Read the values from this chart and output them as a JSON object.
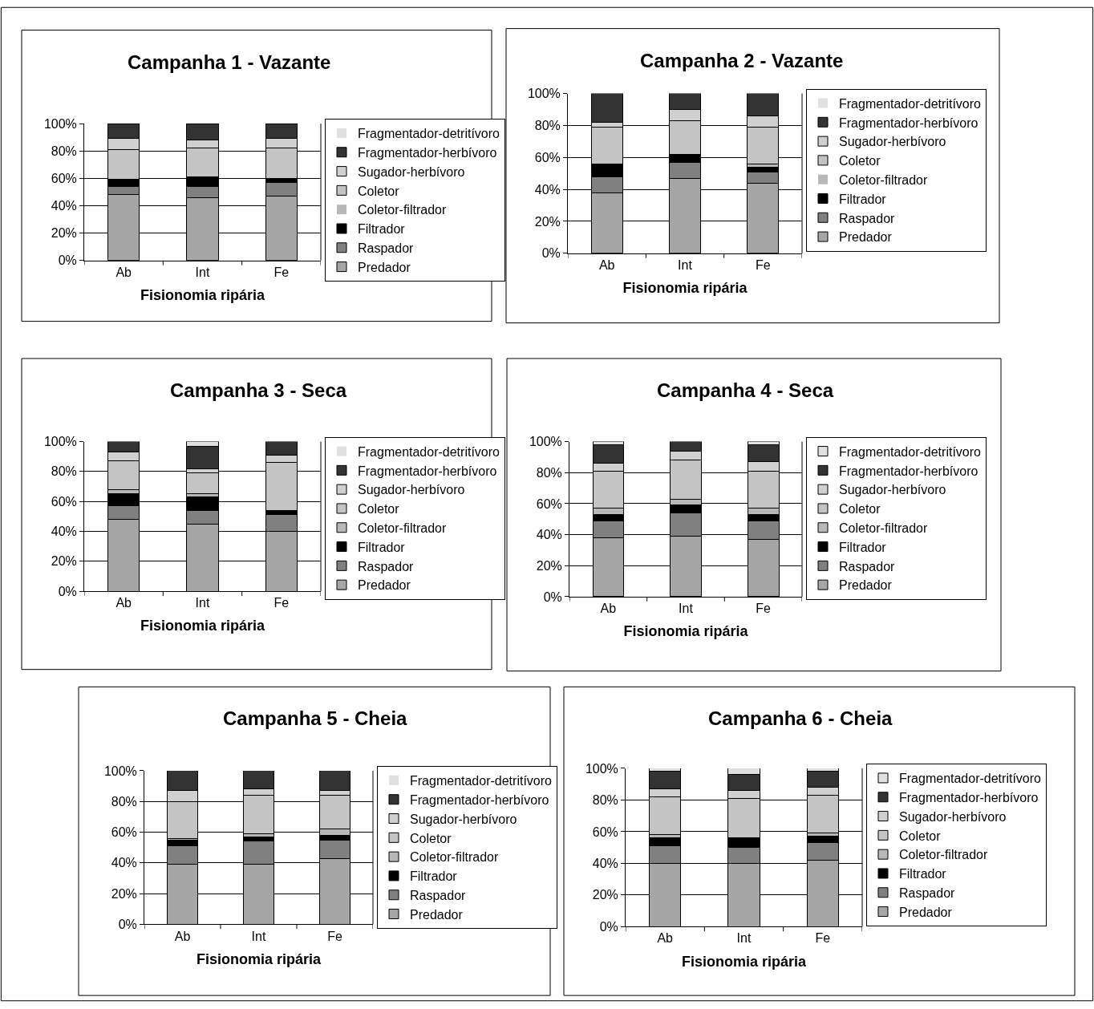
{
  "chart_data": [
    {
      "type": "bar",
      "stacked": true,
      "title": "Campanha 1 - Vazante",
      "xlabel": "Fisionomia ripária",
      "categories": [
        "Ab",
        "Int",
        "Fe"
      ],
      "ylim": [
        0,
        100
      ],
      "yticks": [
        {
          "value": 0,
          "label": "0%"
        },
        {
          "value": 20,
          "label": "20%"
        },
        {
          "value": 40,
          "label": "40%"
        },
        {
          "value": 60,
          "label": "60%"
        },
        {
          "value": 80,
          "label": "80%"
        },
        {
          "value": 100,
          "label": "100%"
        }
      ],
      "grid": "y",
      "legend": "right",
      "series": [
        {
          "name": "Predador",
          "color": "#a6a6a6",
          "values": [
            48,
            46,
            47
          ]
        },
        {
          "name": "Raspador",
          "color": "#808080",
          "values": [
            6,
            8,
            10
          ]
        },
        {
          "name": "Filtrador",
          "color": "#000000",
          "values": [
            5,
            7,
            3
          ]
        },
        {
          "name": "Coletor-filtrador",
          "color": "#b8b8b8",
          "values": [
            0,
            0,
            0
          ]
        },
        {
          "name": "Coletor",
          "color": "#c4c4c4",
          "values": [
            22,
            21,
            22
          ]
        },
        {
          "name": "Sugador-herbívoro",
          "color": "#d0d0d0",
          "values": [
            8,
            6,
            7
          ]
        },
        {
          "name": "Fragmentador-herbívoro",
          "color": "#333333",
          "values": [
            11,
            12,
            11
          ]
        },
        {
          "name": "Fragmentador-detritívoro",
          "color": "#e0e0e0",
          "values": [
            0,
            0,
            0
          ]
        }
      ]
    },
    {
      "type": "bar",
      "stacked": true,
      "title": "Campanha 2 - Vazante",
      "xlabel": "Fisionomia ripária",
      "categories": [
        "Ab",
        "Int",
        "Fe"
      ],
      "ylim": [
        0,
        100
      ],
      "yticks": [
        {
          "value": 0,
          "label": "0%"
        },
        {
          "value": 20,
          "label": "20%"
        },
        {
          "value": 40,
          "label": "40%"
        },
        {
          "value": 60,
          "label": "60%"
        },
        {
          "value": 80,
          "label": "80%"
        },
        {
          "value": 100,
          "label": "100%"
        }
      ],
      "grid": "y",
      "legend": "right",
      "series": [
        {
          "name": "Predador",
          "color": "#a6a6a6",
          "values": [
            38,
            47,
            44
          ]
        },
        {
          "name": "Raspador",
          "color": "#808080",
          "values": [
            10,
            10,
            7
          ]
        },
        {
          "name": "Filtrador",
          "color": "#000000",
          "values": [
            8,
            5,
            3
          ]
        },
        {
          "name": "Coletor-filtrador",
          "color": "#b8b8b8",
          "values": [
            0,
            0,
            2
          ]
        },
        {
          "name": "Coletor",
          "color": "#c4c4c4",
          "values": [
            23,
            21,
            23
          ]
        },
        {
          "name": "Sugador-herbívoro",
          "color": "#d0d0d0",
          "values": [
            3,
            7,
            7
          ]
        },
        {
          "name": "Fragmentador-herbívoro",
          "color": "#333333",
          "values": [
            18,
            10,
            14
          ]
        },
        {
          "name": "Fragmentador-detritívoro",
          "color": "#e0e0e0",
          "values": [
            0,
            0,
            0
          ]
        }
      ]
    },
    {
      "type": "bar",
      "stacked": true,
      "title": "Campanha 3 - Seca",
      "xlabel": "Fisionomia ripária",
      "categories": [
        "Ab",
        "Int",
        "Fe"
      ],
      "ylim": [
        0,
        100
      ],
      "yticks": [
        {
          "value": 0,
          "label": "0%"
        },
        {
          "value": 20,
          "label": "20%"
        },
        {
          "value": 40,
          "label": "40%"
        },
        {
          "value": 60,
          "label": "60%"
        },
        {
          "value": 80,
          "label": "80%"
        },
        {
          "value": 100,
          "label": "100%"
        }
      ],
      "grid": "y",
      "legend": "right",
      "series": [
        {
          "name": "Predador",
          "color": "#a6a6a6",
          "values": [
            48,
            45,
            40
          ]
        },
        {
          "name": "Raspador",
          "color": "#808080",
          "values": [
            9,
            9,
            11
          ]
        },
        {
          "name": "Filtrador",
          "color": "#000000",
          "values": [
            8,
            9,
            3
          ]
        },
        {
          "name": "Coletor-filtrador",
          "color": "#b8b8b8",
          "values": [
            3,
            2,
            0
          ]
        },
        {
          "name": "Coletor",
          "color": "#c4c4c4",
          "values": [
            19,
            14,
            32
          ]
        },
        {
          "name": "Sugador-herbívoro",
          "color": "#d0d0d0",
          "values": [
            6,
            3,
            5
          ]
        },
        {
          "name": "Fragmentador-herbívoro",
          "color": "#333333",
          "values": [
            7,
            15,
            9
          ]
        },
        {
          "name": "Fragmentador-detritívoro",
          "color": "#e0e0e0",
          "values": [
            0,
            3,
            0
          ]
        }
      ]
    },
    {
      "type": "bar",
      "stacked": true,
      "title": "Campanha 4 - Seca",
      "xlabel": "Fisionomia ripária",
      "categories": [
        "Ab",
        "Int",
        "Fe"
      ],
      "ylim": [
        0,
        100
      ],
      "yticks": [
        {
          "value": 0,
          "label": "0%"
        },
        {
          "value": 20,
          "label": "20%"
        },
        {
          "value": 40,
          "label": "40%"
        },
        {
          "value": 60,
          "label": "60%"
        },
        {
          "value": 80,
          "label": "80%"
        },
        {
          "value": 100,
          "label": "100%"
        }
      ],
      "grid": "y",
      "legend": "right",
      "series": [
        {
          "name": "Predador",
          "color": "#a6a6a6",
          "values": [
            38,
            39,
            37
          ]
        },
        {
          "name": "Raspador",
          "color": "#808080",
          "values": [
            11,
            15,
            12
          ]
        },
        {
          "name": "Filtrador",
          "color": "#000000",
          "values": [
            4,
            5,
            4
          ]
        },
        {
          "name": "Coletor-filtrador",
          "color": "#b8b8b8",
          "values": [
            4,
            4,
            4
          ]
        },
        {
          "name": "Coletor",
          "color": "#c4c4c4",
          "values": [
            24,
            25,
            24
          ]
        },
        {
          "name": "Sugador-herbívoro",
          "color": "#d0d0d0",
          "values": [
            5,
            6,
            6
          ]
        },
        {
          "name": "Fragmentador-herbívoro",
          "color": "#333333",
          "values": [
            12,
            6,
            11
          ]
        },
        {
          "name": "Fragmentador-detritívoro",
          "color": "#e0e0e0",
          "values": [
            2,
            0,
            2
          ]
        }
      ]
    },
    {
      "type": "bar",
      "stacked": true,
      "title": "Campanha 5 - Cheia",
      "xlabel": "Fisionomia ripária",
      "categories": [
        "Ab",
        "Int",
        "Fe"
      ],
      "ylim": [
        0,
        100
      ],
      "yticks": [
        {
          "value": 0,
          "label": "0%"
        },
        {
          "value": 20,
          "label": "20%"
        },
        {
          "value": 40,
          "label": "40%"
        },
        {
          "value": 60,
          "label": "60%"
        },
        {
          "value": 80,
          "label": "80%"
        },
        {
          "value": 100,
          "label": "100%"
        }
      ],
      "grid": "y",
      "legend": "right",
      "series": [
        {
          "name": "Predador",
          "color": "#a6a6a6",
          "values": [
            39,
            39,
            43
          ]
        },
        {
          "name": "Raspador",
          "color": "#808080",
          "values": [
            12,
            15,
            12
          ]
        },
        {
          "name": "Filtrador",
          "color": "#000000",
          "values": [
            4,
            3,
            3
          ]
        },
        {
          "name": "Coletor-filtrador",
          "color": "#b8b8b8",
          "values": [
            1,
            2,
            4
          ]
        },
        {
          "name": "Coletor",
          "color": "#c4c4c4",
          "values": [
            24,
            25,
            22
          ]
        },
        {
          "name": "Sugador-herbívoro",
          "color": "#d0d0d0",
          "values": [
            7,
            4,
            3
          ]
        },
        {
          "name": "Fragmentador-herbívoro",
          "color": "#333333",
          "values": [
            13,
            12,
            13
          ]
        },
        {
          "name": "Fragmentador-detritívoro",
          "color": "#e0e0e0",
          "values": [
            0,
            0,
            0
          ]
        }
      ]
    },
    {
      "type": "bar",
      "stacked": true,
      "title": "Campanha 6 - Cheia",
      "xlabel": "Fisionomia ripária",
      "categories": [
        "Ab",
        "Int",
        "Fe"
      ],
      "ylim": [
        0,
        100
      ],
      "yticks": [
        {
          "value": 0,
          "label": "0%"
        },
        {
          "value": 20,
          "label": "20%"
        },
        {
          "value": 40,
          "label": "40%"
        },
        {
          "value": 60,
          "label": "60%"
        },
        {
          "value": 80,
          "label": "80%"
        },
        {
          "value": 100,
          "label": "100%"
        }
      ],
      "grid": "y",
      "legend": "right",
      "series": [
        {
          "name": "Predador",
          "color": "#a6a6a6",
          "values": [
            40,
            40,
            42
          ]
        },
        {
          "name": "Raspador",
          "color": "#808080",
          "values": [
            11,
            10,
            11
          ]
        },
        {
          "name": "Filtrador",
          "color": "#000000",
          "values": [
            5,
            6,
            4
          ]
        },
        {
          "name": "Coletor-filtrador",
          "color": "#b8b8b8",
          "values": [
            2,
            0,
            2
          ]
        },
        {
          "name": "Coletor",
          "color": "#c4c4c4",
          "values": [
            24,
            25,
            24
          ]
        },
        {
          "name": "Sugador-herbívoro",
          "color": "#d0d0d0",
          "values": [
            5,
            5,
            5
          ]
        },
        {
          "name": "Fragmentador-herbívoro",
          "color": "#333333",
          "values": [
            11,
            10,
            10
          ]
        },
        {
          "name": "Fragmentador-detritívoro",
          "color": "#e0e0e0",
          "values": [
            2,
            4,
            2
          ]
        }
      ]
    }
  ]
}
